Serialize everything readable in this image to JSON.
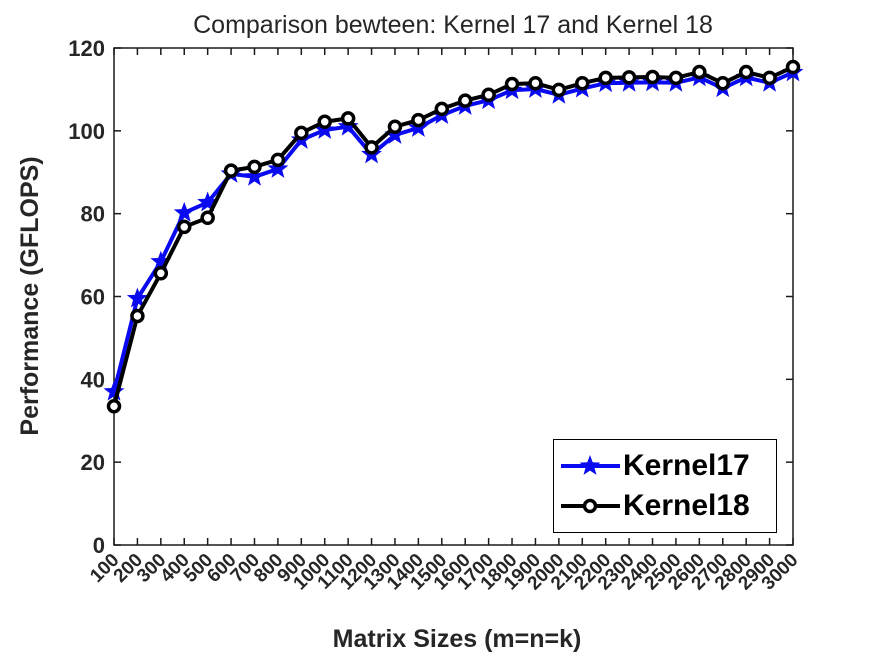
{
  "chart_data": {
    "type": "line",
    "title": "Comparison bewteen: Kernel 17 and Kernel 18",
    "xlabel": "Matrix Sizes (m=n=k)",
    "ylabel": "Performance (GFLOPS)",
    "grid": false,
    "legend_position": "southeast",
    "xtick_angle": 45,
    "xlim": [
      100,
      3000
    ],
    "ylim": [
      0,
      120
    ],
    "yticks": [
      0,
      20,
      40,
      60,
      80,
      100,
      120
    ],
    "x": [
      100,
      200,
      300,
      400,
      500,
      600,
      700,
      800,
      900,
      1000,
      1100,
      1200,
      1300,
      1400,
      1500,
      1600,
      1700,
      1800,
      1900,
      2000,
      2100,
      2200,
      2300,
      2400,
      2500,
      2600,
      2700,
      2800,
      2900,
      3000
    ],
    "series": [
      {
        "name": "Kernel17",
        "color": "#0a0af0",
        "marker": "star",
        "values": [
          37.0,
          59.5,
          68.4,
          80.2,
          82.7,
          89.6,
          88.9,
          90.8,
          97.8,
          100.2,
          101.0,
          94.3,
          99.0,
          100.7,
          103.8,
          106.0,
          107.4,
          109.8,
          110.1,
          108.7,
          110.2,
          111.5,
          111.6,
          111.7,
          111.6,
          112.9,
          110.3,
          112.9,
          111.6,
          114.1
        ]
      },
      {
        "name": "Kernel18",
        "color": "#000000",
        "marker": "circle",
        "values": [
          33.5,
          55.3,
          65.6,
          76.8,
          79.0,
          90.4,
          91.3,
          93.0,
          99.5,
          102.2,
          103.0,
          96.0,
          101.0,
          102.6,
          105.3,
          107.3,
          108.7,
          111.3,
          111.5,
          109.9,
          111.5,
          112.8,
          112.9,
          113.0,
          112.8,
          114.2,
          111.5,
          114.2,
          112.8,
          115.4
        ]
      }
    ]
  }
}
